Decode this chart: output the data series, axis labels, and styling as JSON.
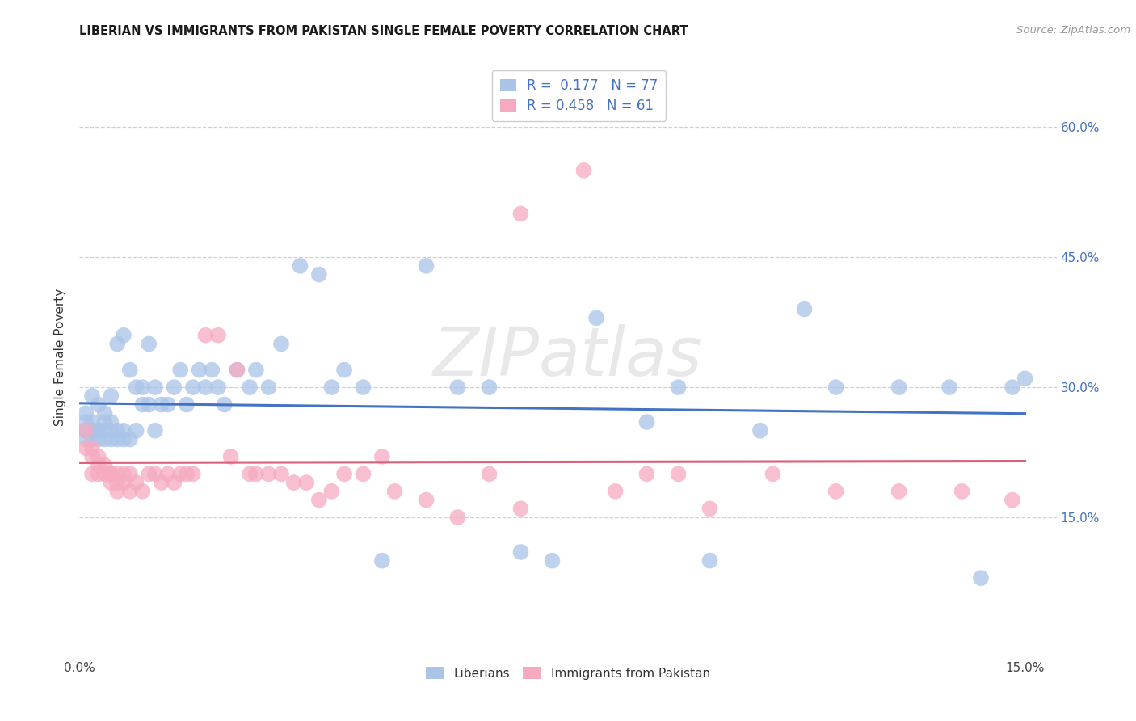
{
  "title": "LIBERIAN VS IMMIGRANTS FROM PAKISTAN SINGLE FEMALE POVERTY CORRELATION CHART",
  "source": "Source: ZipAtlas.com",
  "ylabel": "Single Female Poverty",
  "y_tick_vals": [
    0.15,
    0.3,
    0.45,
    0.6
  ],
  "y_tick_labels": [
    "15.0%",
    "30.0%",
    "45.0%",
    "60.0%"
  ],
  "x_tick_vals": [
    0.0,
    0.05,
    0.1,
    0.15
  ],
  "x_tick_labels": [
    "0.0%",
    "",
    "",
    "15.0%"
  ],
  "xlim": [
    0.0,
    0.155
  ],
  "ylim": [
    -0.01,
    0.68
  ],
  "R_liberian": 0.177,
  "N_liberian": 77,
  "R_pakistan": 0.458,
  "N_pakistan": 61,
  "color_liberian": "#aac4e8",
  "color_pakistan": "#f5aac0",
  "line_color_liberian": "#4472c4",
  "line_color_pakistan": "#d9607a",
  "watermark": "ZIPatlas",
  "background_color": "#ffffff",
  "grid_color": "#d0d0d0",
  "liberian_x": [
    0.001,
    0.001,
    0.001,
    0.001,
    0.001,
    0.002,
    0.002,
    0.002,
    0.002,
    0.002,
    0.003,
    0.003,
    0.003,
    0.003,
    0.004,
    0.004,
    0.004,
    0.004,
    0.005,
    0.005,
    0.005,
    0.005,
    0.006,
    0.006,
    0.006,
    0.007,
    0.007,
    0.007,
    0.008,
    0.008,
    0.009,
    0.009,
    0.01,
    0.01,
    0.011,
    0.011,
    0.012,
    0.012,
    0.013,
    0.014,
    0.015,
    0.016,
    0.017,
    0.018,
    0.019,
    0.02,
    0.021,
    0.022,
    0.023,
    0.025,
    0.027,
    0.028,
    0.03,
    0.032,
    0.035,
    0.038,
    0.04,
    0.042,
    0.045,
    0.048,
    0.055,
    0.06,
    0.065,
    0.07,
    0.075,
    0.082,
    0.09,
    0.095,
    0.1,
    0.108,
    0.115,
    0.12,
    0.13,
    0.138,
    0.143,
    0.148,
    0.15
  ],
  "liberian_y": [
    0.25,
    0.24,
    0.25,
    0.26,
    0.27,
    0.24,
    0.25,
    0.26,
    0.25,
    0.29,
    0.25,
    0.24,
    0.25,
    0.28,
    0.24,
    0.25,
    0.26,
    0.27,
    0.24,
    0.25,
    0.26,
    0.29,
    0.24,
    0.25,
    0.35,
    0.24,
    0.25,
    0.36,
    0.24,
    0.32,
    0.25,
    0.3,
    0.28,
    0.3,
    0.28,
    0.35,
    0.25,
    0.3,
    0.28,
    0.28,
    0.3,
    0.32,
    0.28,
    0.3,
    0.32,
    0.3,
    0.32,
    0.3,
    0.28,
    0.32,
    0.3,
    0.32,
    0.3,
    0.35,
    0.44,
    0.43,
    0.3,
    0.32,
    0.3,
    0.1,
    0.44,
    0.3,
    0.3,
    0.11,
    0.1,
    0.38,
    0.26,
    0.3,
    0.1,
    0.25,
    0.39,
    0.3,
    0.3,
    0.3,
    0.08,
    0.3,
    0.31
  ],
  "pakistan_x": [
    0.001,
    0.001,
    0.002,
    0.002,
    0.002,
    0.003,
    0.003,
    0.003,
    0.004,
    0.004,
    0.005,
    0.005,
    0.005,
    0.006,
    0.006,
    0.006,
    0.007,
    0.007,
    0.008,
    0.008,
    0.009,
    0.01,
    0.011,
    0.012,
    0.013,
    0.014,
    0.015,
    0.016,
    0.017,
    0.018,
    0.02,
    0.022,
    0.024,
    0.025,
    0.027,
    0.028,
    0.03,
    0.032,
    0.034,
    0.036,
    0.038,
    0.04,
    0.042,
    0.045,
    0.048,
    0.05,
    0.055,
    0.06,
    0.065,
    0.07,
    0.08,
    0.085,
    0.09,
    0.095,
    0.1,
    0.11,
    0.12,
    0.13,
    0.14,
    0.148,
    0.07
  ],
  "pakistan_y": [
    0.25,
    0.23,
    0.23,
    0.22,
    0.2,
    0.22,
    0.21,
    0.2,
    0.2,
    0.21,
    0.2,
    0.19,
    0.2,
    0.19,
    0.18,
    0.2,
    0.19,
    0.2,
    0.18,
    0.2,
    0.19,
    0.18,
    0.2,
    0.2,
    0.19,
    0.2,
    0.19,
    0.2,
    0.2,
    0.2,
    0.36,
    0.36,
    0.22,
    0.32,
    0.2,
    0.2,
    0.2,
    0.2,
    0.19,
    0.19,
    0.17,
    0.18,
    0.2,
    0.2,
    0.22,
    0.18,
    0.17,
    0.15,
    0.2,
    0.16,
    0.55,
    0.18,
    0.2,
    0.2,
    0.16,
    0.2,
    0.18,
    0.18,
    0.18,
    0.17,
    0.5
  ]
}
